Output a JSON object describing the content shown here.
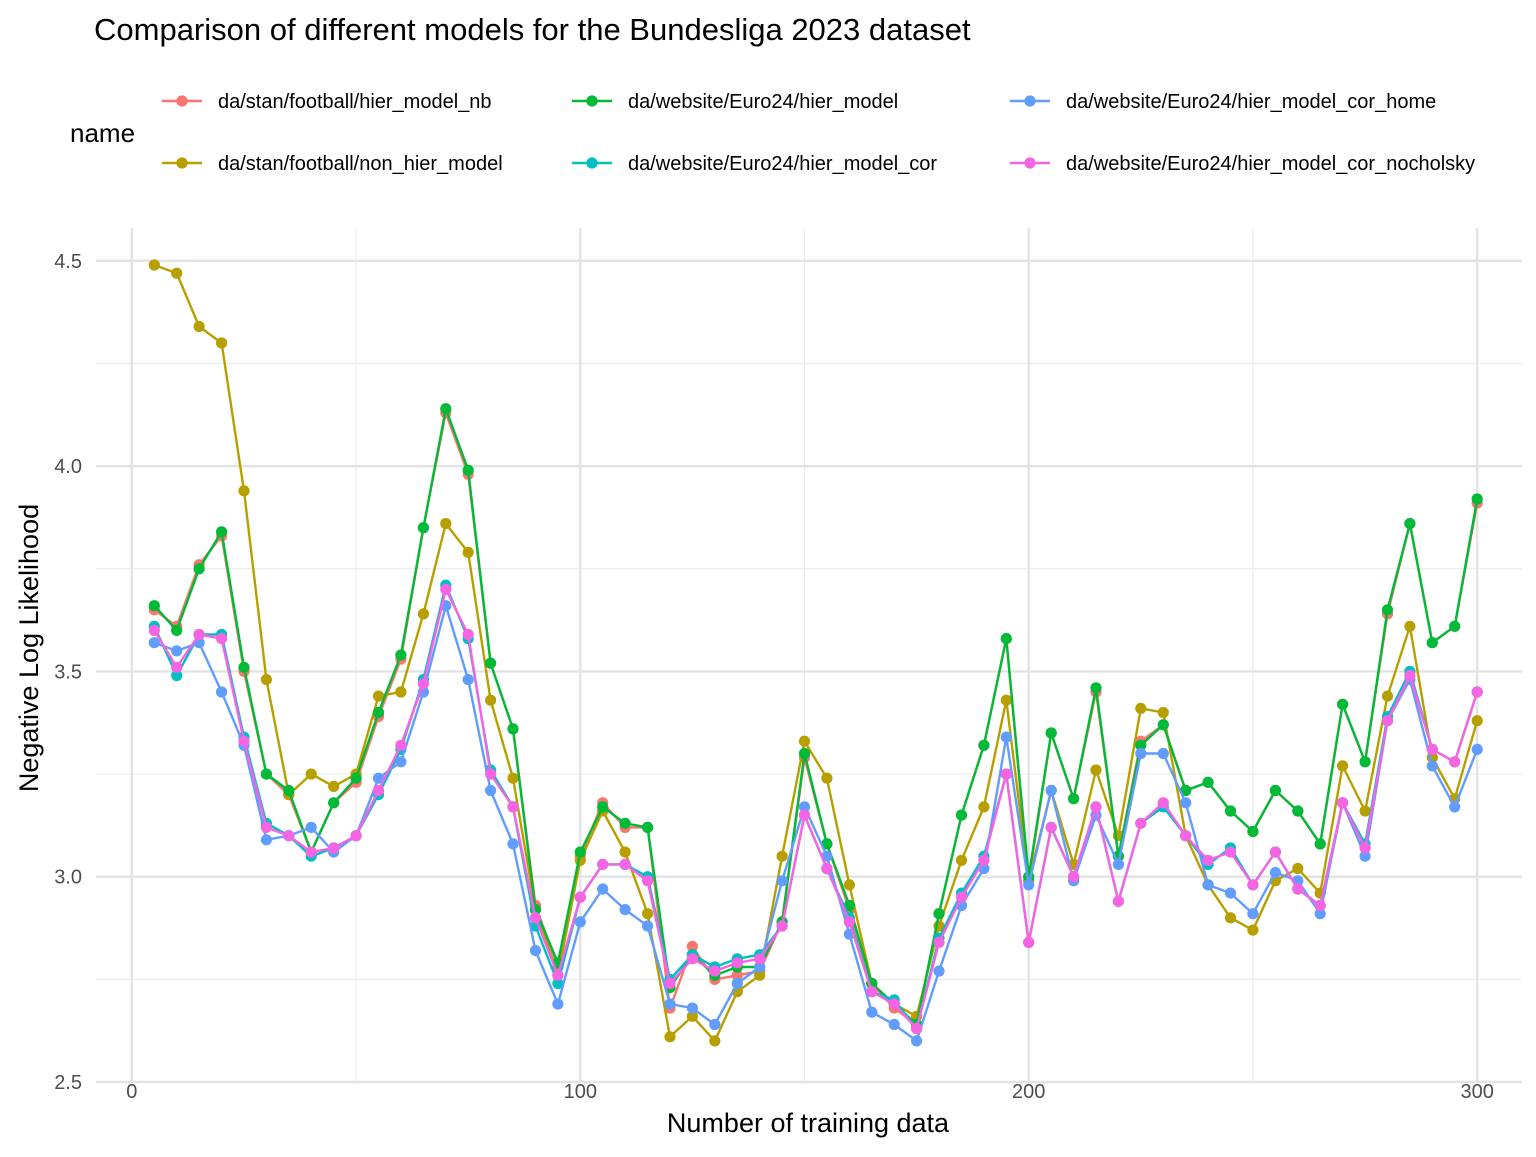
{
  "chart_data": {
    "type": "line",
    "title": "Comparison of different models for the Bundesliga 2023 dataset",
    "xlabel": "Number of training data",
    "ylabel": "Negative Log Likelihood",
    "legend_title": "name",
    "legend_position": "top",
    "grid": true,
    "xlim": [
      -8,
      310
    ],
    "ylim": [
      2.5,
      4.58
    ],
    "x_ticks": [
      0,
      100,
      200,
      300
    ],
    "y_ticks": [
      2.5,
      3.0,
      3.5,
      4.0,
      4.5
    ],
    "x_tick_labels": [
      "0",
      "100",
      "200",
      "300"
    ],
    "y_tick_labels": [
      "2.5",
      "3.0",
      "3.5",
      "4.0",
      "4.5"
    ],
    "x": [
      5,
      10,
      15,
      20,
      25,
      30,
      35,
      40,
      45,
      50,
      55,
      60,
      65,
      70,
      75,
      80,
      85,
      90,
      95,
      100,
      105,
      110,
      115,
      120,
      125,
      130,
      135,
      140,
      145,
      150,
      155,
      160,
      165,
      170,
      175,
      180,
      185,
      190,
      195,
      200,
      205,
      210,
      215,
      220,
      225,
      230,
      235,
      240,
      245,
      250,
      255,
      260,
      265,
      270,
      275,
      280,
      285,
      290,
      295,
      300
    ],
    "series": [
      {
        "name": "da/stan/football/hier_model_nb",
        "color": "#F8766D",
        "values": [
          3.65,
          3.61,
          3.76,
          3.83,
          3.5,
          3.25,
          3.2,
          3.06,
          3.18,
          3.23,
          3.39,
          3.53,
          3.85,
          4.13,
          3.98,
          3.52,
          3.36,
          2.93,
          2.78,
          3.05,
          3.18,
          3.12,
          3.12,
          2.68,
          2.83,
          2.75,
          2.76,
          2.77,
          2.89,
          3.29,
          3.08,
          2.92,
          2.74,
          2.68,
          2.64,
          2.91,
          3.15,
          3.32,
          3.58,
          2.99,
          3.35,
          3.19,
          3.45,
          3.05,
          3.33,
          3.37,
          3.21,
          3.23,
          3.16,
          3.11,
          3.21,
          3.16,
          3.08,
          3.42,
          3.28,
          3.64,
          3.86,
          3.57,
          3.61,
          3.91
        ]
      },
      {
        "name": "da/stan/football/non_hier_model",
        "color": "#B79F00",
        "values": [
          4.49,
          4.47,
          4.34,
          4.3,
          3.94,
          3.48,
          3.2,
          3.25,
          3.22,
          3.25,
          3.44,
          3.45,
          3.64,
          3.86,
          3.79,
          3.43,
          3.24,
          2.92,
          2.76,
          3.04,
          3.16,
          3.06,
          2.91,
          2.61,
          2.66,
          2.6,
          2.72,
          2.76,
          3.05,
          3.33,
          3.24,
          2.98,
          2.74,
          2.69,
          2.66,
          2.88,
          3.04,
          3.17,
          3.43,
          2.99,
          3.21,
          3.03,
          3.26,
          3.1,
          3.41,
          3.4,
          3.1,
          2.98,
          2.9,
          2.87,
          2.99,
          3.02,
          2.96,
          3.27,
          3.16,
          3.44,
          3.61,
          3.29,
          3.19,
          3.38
        ]
      },
      {
        "name": "da/website/Euro24/hier_model",
        "color": "#00BA38",
        "values": [
          3.66,
          3.6,
          3.75,
          3.84,
          3.51,
          3.25,
          3.21,
          3.06,
          3.18,
          3.24,
          3.4,
          3.54,
          3.85,
          4.14,
          3.99,
          3.52,
          3.36,
          2.92,
          2.79,
          3.06,
          3.17,
          3.13,
          3.12,
          2.73,
          2.81,
          2.76,
          2.78,
          2.78,
          2.89,
          3.3,
          3.08,
          2.93,
          2.74,
          2.69,
          2.64,
          2.91,
          3.15,
          3.32,
          3.58,
          3.0,
          3.35,
          3.19,
          3.46,
          3.05,
          3.32,
          3.37,
          3.21,
          3.23,
          3.16,
          3.11,
          3.21,
          3.16,
          3.08,
          3.42,
          3.28,
          3.65,
          3.86,
          3.57,
          3.61,
          3.92
        ]
      },
      {
        "name": "da/website/Euro24/hier_model_cor",
        "color": "#00BFC4",
        "values": [
          3.61,
          3.49,
          3.59,
          3.59,
          3.34,
          3.13,
          3.1,
          3.05,
          3.07,
          3.1,
          3.2,
          3.31,
          3.48,
          3.71,
          3.58,
          3.26,
          3.17,
          2.88,
          2.74,
          2.95,
          3.03,
          3.03,
          3.0,
          2.75,
          2.81,
          2.78,
          2.8,
          2.81,
          2.88,
          3.15,
          3.02,
          2.9,
          2.72,
          2.7,
          2.63,
          2.85,
          2.96,
          3.05,
          3.25,
          2.84,
          3.12,
          3.0,
          3.17,
          2.94,
          3.13,
          3.17,
          3.1,
          3.03,
          3.07,
          2.98,
          3.06,
          2.97,
          2.93,
          3.18,
          3.08,
          3.39,
          3.5,
          3.31,
          3.28,
          3.45
        ]
      },
      {
        "name": "da/website/Euro24/hier_model_cor_home",
        "color": "#619CFF",
        "values": [
          3.57,
          3.55,
          3.57,
          3.45,
          3.32,
          3.09,
          3.1,
          3.12,
          3.06,
          3.1,
          3.24,
          3.28,
          3.45,
          3.66,
          3.48,
          3.21,
          3.08,
          2.82,
          2.69,
          2.89,
          2.97,
          2.92,
          2.88,
          2.69,
          2.68,
          2.64,
          2.74,
          2.78,
          2.99,
          3.17,
          3.05,
          2.86,
          2.67,
          2.64,
          2.6,
          2.77,
          2.93,
          3.02,
          3.34,
          2.98,
          3.21,
          2.99,
          3.15,
          3.03,
          3.3,
          3.3,
          3.18,
          2.98,
          2.96,
          2.91,
          3.01,
          2.99,
          2.91,
          3.18,
          3.05,
          3.38,
          3.48,
          3.27,
          3.17,
          3.31
        ]
      },
      {
        "name": "da/website/Euro24/hier_model_cor_nocholsky",
        "color": "#F564E3",
        "values": [
          3.6,
          3.51,
          3.59,
          3.58,
          3.33,
          3.12,
          3.1,
          3.06,
          3.07,
          3.1,
          3.21,
          3.32,
          3.47,
          3.7,
          3.59,
          3.25,
          3.17,
          2.9,
          2.76,
          2.95,
          3.03,
          3.03,
          2.99,
          2.74,
          2.8,
          2.77,
          2.79,
          2.8,
          2.88,
          3.15,
          3.02,
          2.89,
          2.72,
          2.69,
          2.63,
          2.84,
          2.95,
          3.04,
          3.25,
          2.84,
          3.12,
          3.0,
          3.17,
          2.94,
          3.13,
          3.18,
          3.1,
          3.04,
          3.06,
          2.98,
          3.06,
          2.97,
          2.93,
          3.18,
          3.07,
          3.38,
          3.49,
          3.31,
          3.28,
          3.45
        ]
      }
    ]
  }
}
